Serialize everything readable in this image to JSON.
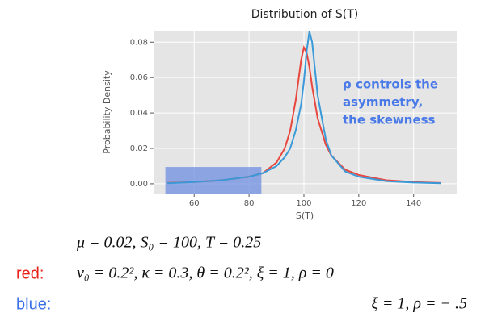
{
  "chart_data": {
    "type": "line",
    "title": "Distribution of S(T)",
    "x_label": "S(T)",
    "y_label": "Probability Density",
    "x": [
      50,
      60,
      70,
      80,
      85,
      90,
      93,
      95,
      97,
      99,
      100,
      101,
      102,
      103,
      105,
      108,
      110,
      115,
      120,
      130,
      140,
      150
    ],
    "series": [
      {
        "color": "#e8473f",
        "values": [
          0.0005,
          0.001,
          0.002,
          0.004,
          0.006,
          0.012,
          0.02,
          0.03,
          0.047,
          0.07,
          0.077,
          0.074,
          0.066,
          0.055,
          0.037,
          0.022,
          0.016,
          0.008,
          0.005,
          0.002,
          0.001,
          0.0005
        ]
      },
      {
        "color": "#3a9ad9",
        "values": [
          0.0003,
          0.001,
          0.002,
          0.004,
          0.006,
          0.01,
          0.015,
          0.02,
          0.03,
          0.045,
          0.058,
          0.075,
          0.086,
          0.08,
          0.05,
          0.025,
          0.016,
          0.007,
          0.004,
          0.0015,
          0.0007,
          0.0003
        ]
      }
    ],
    "xlim": [
      45.2,
      155.7
    ],
    "ylim": [
      -0.0055,
      0.0865
    ],
    "xticks": [
      60,
      80,
      100,
      120,
      140
    ],
    "yticks": [
      {
        "value": 0,
        "label": "0.00"
      },
      0.02,
      0.04,
      0.06,
      0.08
    ],
    "grid": true,
    "highlight": {
      "x": [
        49.5,
        84.5
      ],
      "y": [
        -0.0055,
        0.0095
      ],
      "color": "#6d8fe0"
    },
    "annotation": {
      "lines": [
        "ρ controls the",
        "asymmetry,",
        "the skewness"
      ],
      "color": "#4a7ae8"
    }
  },
  "parameters": {
    "common": "μ = 0.02, S₀ = 100, T = 0.25",
    "red_label": "red:",
    "red_color": "#e8231a",
    "red": "ν₀ = 0.2², κ = 0.3, θ = 0.2², ξ = 1, ρ = 0",
    "blue_label": "blue:",
    "blue_color": "#3a6fe8",
    "blue": "ξ = 1, ρ = − .5"
  }
}
